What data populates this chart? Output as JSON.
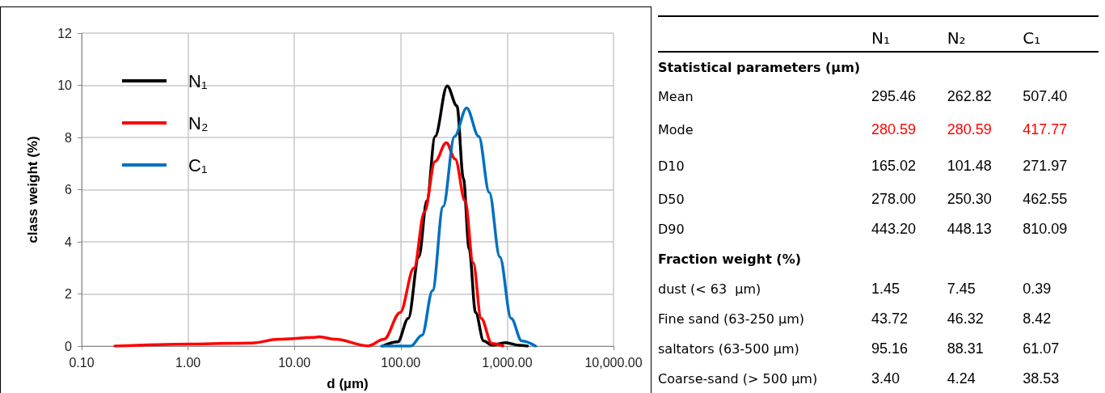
{
  "chart_data": [
    {
      "type": "line",
      "xlabel": "d (µm)",
      "ylabel": "class weight (%)",
      "xlim": [
        0.1,
        10000
      ],
      "xticks": [
        {
          "value": 0.1,
          "label": "0.10"
        },
        {
          "value": 1,
          "label": "1.00"
        },
        {
          "value": 10,
          "label": "10.00"
        },
        {
          "value": 100,
          "label": "100.00"
        },
        {
          "value": 1000,
          "label": "1,000.00"
        },
        {
          "value": 10000,
          "label": "10,000.00"
        }
      ],
      "ylim": [
        0,
        12
      ],
      "yticks": [
        0,
        2,
        4,
        6,
        8,
        10,
        12
      ],
      "log": "x",
      "grid": true,
      "legend": "top left",
      "marker": "none",
      "line_style": "solid",
      "series": [
        {
          "name": "N₁",
          "color": "#000000",
          "x": [
            67.1,
            93.6,
            117.6,
            147.8,
            176,
            210,
            273,
            337,
            388,
            439,
            505,
            601,
            716,
            966,
            1301,
            1550
          ],
          "values": [
            0,
            0.16,
            1.06,
            3.42,
            5.57,
            8.04,
            9.98,
            9.21,
            6.43,
            3.74,
            1.29,
            0.2,
            0.04,
            0.13,
            0.03,
            0
          ]
        },
        {
          "name": "N₂",
          "color": "#ff0000",
          "x": [
            0.205,
            1.03,
            3.98,
            7.1,
            15.1,
            17.1,
            24.3,
            49,
            69.5,
            98.6,
            133,
            167,
            210,
            268,
            325,
            402,
            479,
            570,
            716,
            916
          ],
          "values": [
            0,
            0.08,
            0.12,
            0.26,
            0.33,
            0.36,
            0.26,
            0.01,
            0.26,
            1.29,
            2.99,
            5.15,
            7.08,
            7.8,
            7.17,
            5.57,
            3.2,
            1.06,
            0.1,
            0
          ]
        },
        {
          "name": "C₁",
          "color": "#0070c0",
          "x": [
            65.9,
            124,
            158.5,
            199,
            250,
            320,
            416,
            541,
            679,
            853,
            1091,
            1371,
            1849
          ],
          "values": [
            0,
            0,
            0.42,
            2.13,
            5.35,
            8.04,
            9.13,
            8.04,
            5.89,
            3.42,
            1.06,
            0.2,
            0
          ]
        }
      ]
    },
    {
      "type": "other",
      "categories": [
        "Statistical parameters (µm)",
        "Mean",
        "Mode",
        "D10",
        "D50",
        "D90",
        "Fraction weight (%)",
        "dust (< 63  µm)",
        "Fine sand (63-250 µm)",
        "saltators (63-500 µm)",
        "Coarse-sand (> 500 µm)"
      ],
      "series": [
        {
          "name": "N₁",
          "values": [
            null,
            295.46,
            280.59,
            165.02,
            278.0,
            443.2,
            null,
            1.45,
            43.72,
            95.16,
            3.4
          ],
          "value_labels": [
            null,
            "295.46",
            "280.59",
            "165.02",
            "278.00",
            "443.20",
            null,
            "1.45",
            "43.72",
            "95.16",
            "3.40"
          ],
          "colors": [
            null,
            "#000000",
            "#ff0000",
            "#000000",
            "#000000",
            "#000000",
            null,
            "#000000",
            "#000000",
            "#000000",
            "#000000"
          ]
        },
        {
          "name": "N₂",
          "values": [
            null,
            262.82,
            280.59,
            101.48,
            250.3,
            448.13,
            null,
            7.45,
            46.32,
            88.31,
            4.24
          ],
          "value_labels": [
            null,
            "262.82",
            "280.59",
            "101.48",
            "250.30",
            "448.13",
            null,
            "7.45",
            "46.32",
            "88.31",
            "4.24"
          ],
          "colors": [
            null,
            "#000000",
            "#ff0000",
            "#000000",
            "#000000",
            "#000000",
            null,
            "#000000",
            "#000000",
            "#000000",
            "#000000"
          ]
        },
        {
          "name": "C₁",
          "values": [
            null,
            507.4,
            417.77,
            271.97,
            462.55,
            810.09,
            null,
            0.39,
            8.42,
            61.07,
            38.53
          ],
          "value_labels": [
            null,
            "507.40",
            "417.77",
            "271.97",
            "462.55",
            "810.09",
            null,
            "0.39",
            "8.42",
            "61.07",
            "38.53"
          ],
          "colors": [
            null,
            "#000000",
            "#ff0000",
            "#000000",
            "#000000",
            "#000000",
            null,
            "#000000",
            "#000000",
            "#000000",
            "#000000"
          ]
        }
      ]
    }
  ]
}
